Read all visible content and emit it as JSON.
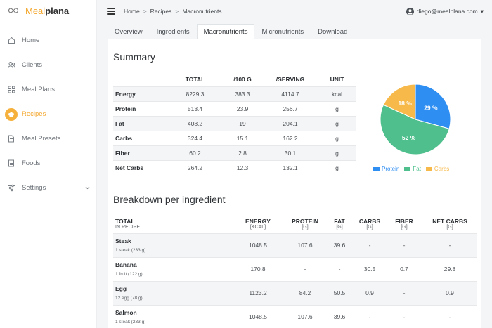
{
  "app": {
    "brand_part1": "Meal",
    "brand_part2": "plana"
  },
  "sidebar": {
    "items": [
      {
        "label": "Home",
        "icon": "home-icon"
      },
      {
        "label": "Clients",
        "icon": "users-icon"
      },
      {
        "label": "Meal Plans",
        "icon": "grid-icon"
      },
      {
        "label": "Recipes",
        "icon": "chef-hat-icon",
        "active": true
      },
      {
        "label": "Meal Presets",
        "icon": "document-icon"
      },
      {
        "label": "Foods",
        "icon": "list-icon"
      },
      {
        "label": "Settings",
        "icon": "sliders-icon"
      }
    ]
  },
  "header": {
    "breadcrumb": [
      "Home",
      "Recipes",
      "Macronutrients"
    ],
    "breadcrumb_sep": ">",
    "user_email": "diego@mealplana.com",
    "user_caret": "▾"
  },
  "tabs": [
    "Overview",
    "Ingredients",
    "Macronutrients",
    "Micronutrients",
    "Download"
  ],
  "summary": {
    "title": "Summary",
    "columns": [
      "",
      "TOTAL",
      "/100 G",
      "/SERVING",
      "UNIT"
    ],
    "rows": [
      [
        "Energy",
        "8229.3",
        "383.3",
        "4114.7",
        "kcal"
      ],
      [
        "Protein",
        "513.4",
        "23.9",
        "256.7",
        "g"
      ],
      [
        "Fat",
        "408.2",
        "19",
        "204.1",
        "g"
      ],
      [
        "Carbs",
        "324.4",
        "15.1",
        "162.2",
        "g"
      ],
      [
        "Fiber",
        "60.2",
        "2.8",
        "30.1",
        "g"
      ],
      [
        "Net Carbs",
        "264.2",
        "12.3",
        "132.1",
        "g"
      ]
    ]
  },
  "chart_data": {
    "type": "pie",
    "series": [
      {
        "name": "Protein",
        "value": 29,
        "label": "29 %",
        "color": "#2f8ef2"
      },
      {
        "name": "Fat",
        "value": 52,
        "label": "52 %",
        "color": "#4fc08d"
      },
      {
        "name": "Carbs",
        "value": 18,
        "label": "18 %",
        "color": "#f6b94a"
      }
    ],
    "legend_position": "bottom"
  },
  "breakdown": {
    "title": "Breakdown per ingredient",
    "columns": [
      "TOTAL",
      "ENERGY",
      "PROTEIN",
      "FAT",
      "CARBS",
      "FIBER",
      "NET CARBS"
    ],
    "subcolumns": [
      "IN RECIPE",
      "[KCAL]",
      "[G]",
      "[G]",
      "[G]",
      "[G]",
      "[G]"
    ],
    "rows": [
      {
        "name": "Steak",
        "amount": "1 steak (233 g)",
        "values": [
          "1048.5",
          "107.6",
          "39.6",
          "-",
          "-",
          "-"
        ]
      },
      {
        "name": "Banana",
        "amount": "1 fruit (122 g)",
        "values": [
          "170.8",
          "-",
          "-",
          "30.5",
          "0.7",
          "29.8"
        ]
      },
      {
        "name": "Egg",
        "amount": "12 egg (78 g)",
        "values": [
          "1123.2",
          "84.2",
          "50.5",
          "0.9",
          "-",
          "0.9"
        ]
      },
      {
        "name": "Salmon",
        "amount": "1 steak (233 g)",
        "values": [
          "1048.5",
          "107.6",
          "39.6",
          "-",
          "-",
          "-"
        ]
      }
    ]
  }
}
